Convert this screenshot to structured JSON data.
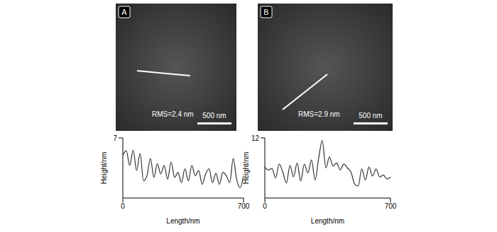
{
  "chart_data": [
    {
      "type": "line",
      "panel": "A",
      "annotations": [
        "RMS=2.4 nm",
        "500 nm"
      ],
      "x_label": "Length/nm",
      "y_label": "Height/nm",
      "x": [
        0,
        20,
        40,
        60,
        80,
        100,
        120,
        140,
        160,
        180,
        200,
        220,
        240,
        260,
        280,
        300,
        320,
        340,
        360,
        380,
        400,
        420,
        440,
        460,
        480,
        500,
        520,
        540,
        560,
        580,
        600,
        620,
        640,
        660,
        680,
        700
      ],
      "values": [
        5.0,
        5.5,
        3.8,
        5.6,
        3.2,
        5.2,
        2.0,
        2.6,
        4.6,
        2.4,
        4.0,
        2.8,
        3.8,
        2.2,
        4.2,
        2.4,
        3.0,
        1.8,
        3.4,
        2.0,
        3.8,
        2.6,
        3.2,
        1.6,
        2.8,
        3.4,
        1.8,
        2.9,
        1.6,
        3.0,
        2.6,
        1.8,
        4.6,
        2.2,
        1.2,
        2.6
      ],
      "color": "#333333",
      "xlim": [
        0,
        700
      ],
      "xticks": [
        0,
        700
      ],
      "ylim": [
        0,
        7
      ],
      "yticks": [
        7
      ]
    },
    {
      "type": "line",
      "panel": "B",
      "annotations": [
        "RMS=2.9 nm",
        "500 nm"
      ],
      "x_label": "Length/nm",
      "y_label": "Height/nm",
      "x": [
        0,
        20,
        40,
        60,
        80,
        100,
        120,
        140,
        160,
        180,
        200,
        220,
        240,
        260,
        280,
        300,
        320,
        340,
        360,
        380,
        400,
        420,
        440,
        460,
        480,
        500,
        520,
        540,
        560,
        580,
        600,
        620,
        640,
        660,
        680,
        700
      ],
      "values": [
        6.2,
        5.6,
        5.9,
        4.0,
        6.8,
        5.2,
        3.0,
        6.5,
        4.2,
        7.0,
        3.4,
        6.8,
        5.0,
        7.6,
        3.6,
        8.0,
        11.5,
        6.0,
        8.2,
        6.4,
        7.0,
        5.6,
        6.8,
        6.0,
        5.2,
        2.8,
        2.4,
        5.8,
        3.6,
        6.2,
        4.4,
        5.8,
        4.2,
        4.6,
        3.8,
        4.2
      ],
      "color": "#333333",
      "xlim": [
        0,
        700
      ],
      "xticks": [
        0,
        700
      ],
      "ylim": [
        0,
        12
      ],
      "yticks": [
        12
      ]
    }
  ]
}
